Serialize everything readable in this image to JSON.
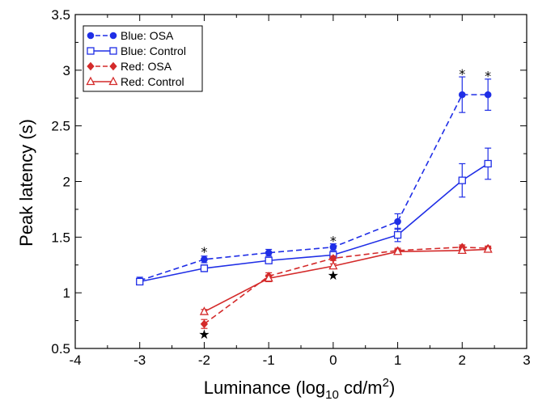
{
  "chart_data": {
    "type": "line",
    "title": "",
    "xlabel": "Luminance (log",
    "xlabel_sub": "10",
    "xlabel_unit": " cd/m",
    "xlabel_sup": "2",
    "xlabel_close": ")",
    "ylabel": "Peak latency (s)",
    "xlim": [
      -4,
      3
    ],
    "ylim": [
      0.5,
      3.5
    ],
    "xticks": [
      -4,
      -3,
      -2,
      -1,
      0,
      1,
      2,
      3
    ],
    "xtick_labels": [
      "-4",
      "-3",
      "-2",
      "-1",
      "0",
      "1",
      "2",
      "3"
    ],
    "yticks": [
      0.5,
      1,
      1.5,
      2,
      2.5,
      3,
      3.5
    ],
    "ytick_labels": [
      "0.5",
      "1",
      "1.5",
      "2",
      "2.5",
      "3",
      "3.5"
    ],
    "grid": false,
    "legend_position": "top-left",
    "series": [
      {
        "name": "Blue: OSA",
        "color": "#1f2ee6",
        "dashed": true,
        "marker": "circle-filled",
        "x": [
          -3,
          -2,
          -1,
          0,
          1,
          2,
          2.4
        ],
        "y": [
          1.11,
          1.3,
          1.36,
          1.41,
          1.64,
          2.78,
          2.78
        ],
        "err": [
          0.03,
          0.03,
          0.03,
          0.03,
          0.07,
          0.16,
          0.14
        ]
      },
      {
        "name": "Blue: Control",
        "color": "#1f2ee6",
        "dashed": false,
        "marker": "square-open",
        "x": [
          -3,
          -2,
          -1,
          0,
          1,
          2,
          2.4
        ],
        "y": [
          1.1,
          1.22,
          1.29,
          1.34,
          1.52,
          2.01,
          2.16
        ],
        "err": [
          0.02,
          0.03,
          0.02,
          0.02,
          0.06,
          0.15,
          0.14
        ]
      },
      {
        "name": "Red: OSA",
        "color": "#d42a2a",
        "dashed": true,
        "marker": "diamond-filled",
        "x": [
          -2,
          -1,
          0,
          1,
          2,
          2.4
        ],
        "y": [
          0.72,
          1.15,
          1.31,
          1.38,
          1.41,
          1.4
        ],
        "err": [
          0.04,
          0.03,
          0.02,
          0.02,
          0.02,
          0.02
        ]
      },
      {
        "name": "Red: Control",
        "color": "#d42a2a",
        "dashed": false,
        "marker": "triangle-open",
        "x": [
          -2,
          -1,
          0,
          1,
          2,
          2.4
        ],
        "y": [
          0.83,
          1.13,
          1.24,
          1.37,
          1.38,
          1.39
        ],
        "err": [
          0.02,
          0.03,
          0.02,
          0.02,
          0.02,
          0.02
        ]
      }
    ],
    "annotations": [
      {
        "text": "*",
        "x": -2,
        "y": 1.37
      },
      {
        "text": "*",
        "x": 0,
        "y": 1.47
      },
      {
        "text": "*",
        "x": 2,
        "y": 2.97
      },
      {
        "text": "*",
        "x": 2.4,
        "y": 2.95
      },
      {
        "text": "★",
        "x": 0,
        "y": 1.16
      },
      {
        "text": "★",
        "x": -2,
        "y": 0.63
      }
    ]
  }
}
